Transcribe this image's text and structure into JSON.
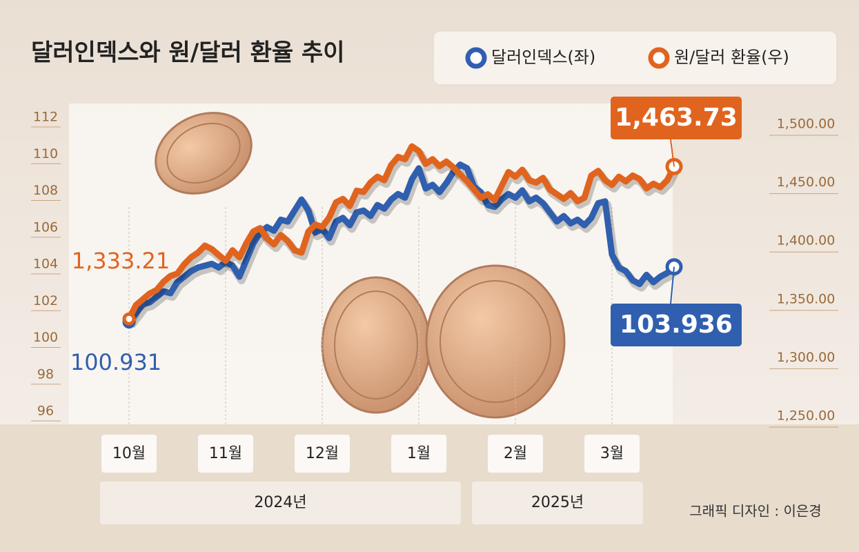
{
  "chart_data": {
    "type": "line",
    "title": "달러인덱스와 원/달러 환율 추이",
    "credit": "그래픽 디자인 : 이은경",
    "year_labels": [
      "2024년",
      "2025년"
    ],
    "categories": [
      "10월",
      null,
      null,
      null,
      null,
      null,
      null,
      null,
      null,
      null,
      null,
      null,
      null,
      null,
      "11월",
      null,
      null,
      null,
      null,
      null,
      null,
      null,
      null,
      null,
      null,
      null,
      null,
      null,
      "12월",
      null,
      null,
      null,
      null,
      null,
      null,
      null,
      null,
      null,
      null,
      null,
      null,
      null,
      "1월",
      null,
      null,
      null,
      null,
      null,
      null,
      null,
      null,
      null,
      null,
      null,
      null,
      null,
      "2월",
      null,
      null,
      null,
      null,
      null,
      null,
      null,
      null,
      null,
      null,
      null,
      null,
      null,
      "3월",
      null,
      null,
      null,
      null,
      null,
      null,
      null,
      null,
      null
    ],
    "series": [
      {
        "name": "달러인덱스(좌)",
        "color": "#2f5fae",
        "axis": "y",
        "values": [
          100.931,
          101.4,
          101.9,
          102.0,
          102.3,
          102.6,
          102.5,
          103.1,
          103.4,
          103.7,
          103.9,
          104.0,
          104.1,
          103.9,
          104.2,
          104.0,
          103.4,
          104.3,
          105.2,
          105.8,
          106.1,
          105.9,
          106.5,
          106.4,
          107.0,
          107.6,
          107.0,
          105.8,
          106.0,
          105.5,
          106.4,
          106.6,
          106.2,
          106.9,
          107.0,
          106.7,
          107.3,
          107.1,
          107.6,
          107.9,
          107.7,
          108.7,
          109.3,
          108.2,
          108.4,
          108.0,
          108.5,
          109.1,
          109.5,
          109.3,
          108.3,
          108.0,
          107.3,
          107.2,
          107.6,
          107.9,
          107.7,
          108.1,
          107.5,
          107.7,
          107.4,
          106.9,
          106.4,
          106.7,
          106.3,
          106.5,
          106.2,
          106.6,
          107.4,
          107.5,
          104.6,
          103.9,
          103.7,
          103.2,
          103.0,
          103.5,
          103.1,
          103.4,
          103.6,
          103.936
        ]
      },
      {
        "name": "원/달러 환율(우)",
        "color": "#e0641e",
        "axis": "y2",
        "values": [
          1333.21,
          1345,
          1350,
          1355,
          1358,
          1365,
          1370,
          1372,
          1380,
          1386,
          1390,
          1396,
          1393,
          1388,
          1383,
          1392,
          1386,
          1398,
          1408,
          1411,
          1402,
          1397,
          1405,
          1400,
          1392,
          1390,
          1408,
          1414,
          1412,
          1420,
          1433,
          1436,
          1430,
          1443,
          1442,
          1450,
          1455,
          1452,
          1465,
          1472,
          1470,
          1481,
          1477,
          1466,
          1470,
          1464,
          1468,
          1463,
          1457,
          1451,
          1444,
          1437,
          1440,
          1435,
          1447,
          1459,
          1455,
          1461,
          1452,
          1450,
          1454,
          1444,
          1440,
          1436,
          1441,
          1434,
          1437,
          1456,
          1460,
          1452,
          1448,
          1455,
          1451,
          1456,
          1453,
          1445,
          1449,
          1446,
          1452,
          1463.73
        ],
        "value_labels": [
          "1,333.21",
          null,
          null,
          null,
          null,
          null,
          null,
          null,
          null,
          null,
          null,
          null,
          null,
          null,
          null,
          null,
          null,
          null,
          null,
          null,
          null,
          null,
          null,
          null,
          null,
          null,
          null,
          null,
          null,
          null,
          null,
          null,
          null,
          null,
          null,
          null,
          null,
          null,
          null,
          null,
          null,
          null,
          null,
          null,
          null,
          null,
          null,
          null,
          null,
          null,
          null,
          null,
          null,
          null,
          null,
          null,
          null,
          null,
          null,
          null,
          null,
          null,
          null,
          null,
          null,
          null,
          null,
          null,
          null,
          null,
          null,
          null,
          null,
          null,
          null,
          null,
          null,
          null,
          null,
          "1,463.73"
        ]
      }
    ],
    "ylim": [
      96,
      112
    ],
    "yticks": [
      96,
      98,
      100,
      102,
      104,
      106,
      108,
      110,
      112
    ],
    "y2lim": [
      1250,
      1500
    ],
    "y2ticks": [
      {
        "value": 1250,
        "label": "1,250.00"
      },
      {
        "value": 1300,
        "label": "1,300.00"
      },
      {
        "value": 1350,
        "label": "1,350.00"
      },
      {
        "value": 1400,
        "label": "1,400.00"
      },
      {
        "value": 1450,
        "label": "1,450.00"
      },
      {
        "value": 1500,
        "label": "1,500.00"
      }
    ]
  }
}
